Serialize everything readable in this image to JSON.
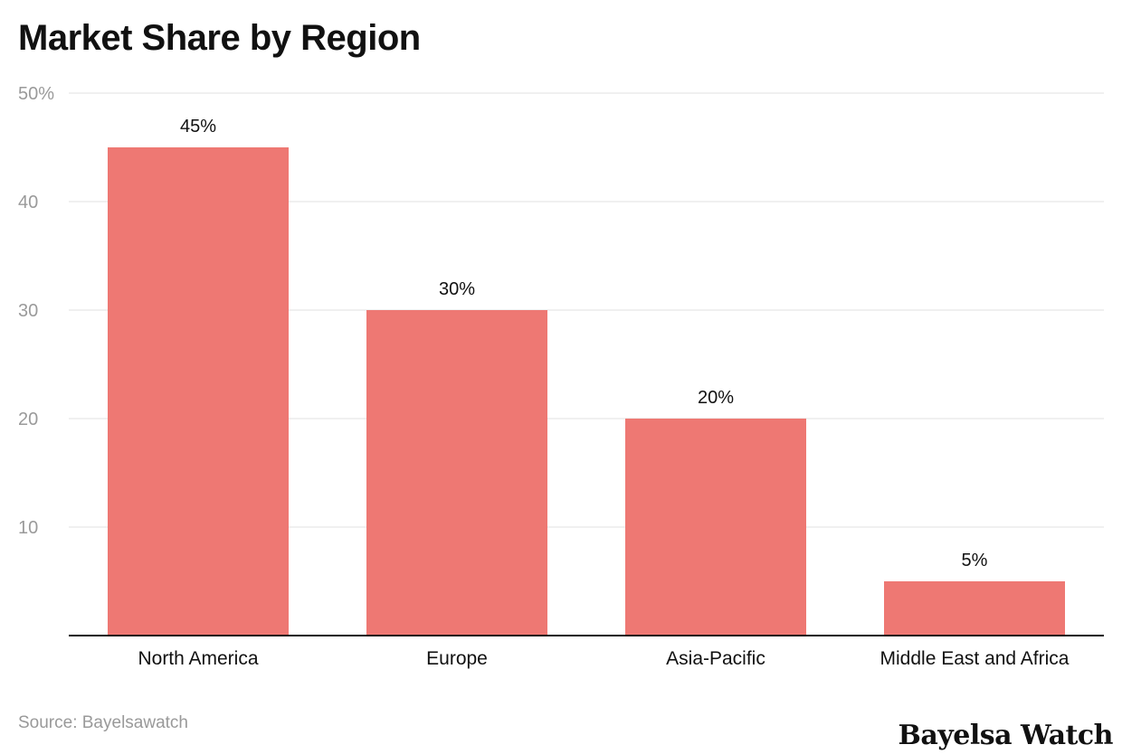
{
  "chart_data": {
    "type": "bar",
    "title": "Market Share by Region",
    "categories": [
      "North America",
      "Europe",
      "Asia-Pacific",
      "Middle East and Africa"
    ],
    "values": [
      45,
      30,
      20,
      5
    ],
    "data_labels": [
      "45%",
      "30%",
      "20%",
      "5%"
    ],
    "ylim": [
      0,
      50
    ],
    "yticks": [
      10,
      20,
      30,
      40,
      50
    ],
    "ytick_labels": [
      "10",
      "20",
      "30",
      "40",
      "50%"
    ],
    "xlabel": "",
    "ylabel": "",
    "grid": true,
    "bar_color": "#ee7873"
  },
  "source": "Source: Bayelsawatch",
  "logo": "Bayelsa Watch"
}
